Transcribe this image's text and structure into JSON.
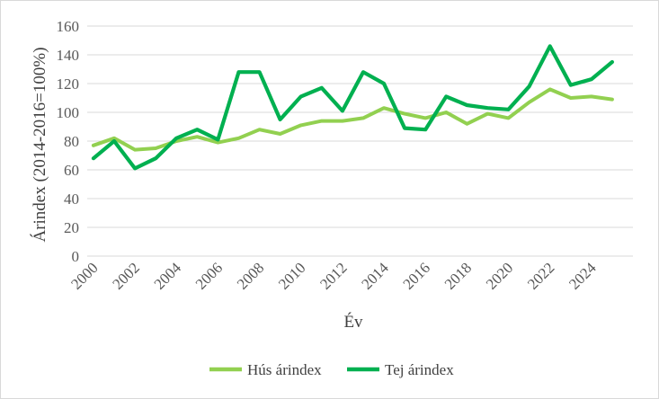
{
  "chart_data": {
    "type": "line",
    "title": "",
    "xlabel": "Év",
    "ylabel": "Árindex (2014-2016=100%)",
    "ylim": [
      0,
      160
    ],
    "yticks": [
      0,
      20,
      40,
      60,
      80,
      100,
      120,
      140,
      160
    ],
    "grid": "horizontal",
    "legend_position": "bottom",
    "x": [
      2000,
      2001,
      2002,
      2003,
      2004,
      2005,
      2006,
      2007,
      2008,
      2009,
      2010,
      2011,
      2012,
      2013,
      2014,
      2015,
      2016,
      2017,
      2018,
      2019,
      2020,
      2021,
      2022,
      2023,
      2024,
      2025
    ],
    "xtick_labels": [
      "2000",
      "2002",
      "2004",
      "2006",
      "2008",
      "2010",
      "2012",
      "2014",
      "2016",
      "2018",
      "2020",
      "2022",
      "2024"
    ],
    "series": [
      {
        "name": "Hús árindex",
        "color": "#92d050",
        "values": [
          77,
          82,
          74,
          75,
          80,
          83,
          79,
          82,
          88,
          85,
          91,
          94,
          94,
          96,
          103,
          99,
          96,
          100,
          92,
          99,
          96,
          107,
          116,
          110,
          111,
          109
        ]
      },
      {
        "name": "Tej árindex",
        "color": "#00b050",
        "values": [
          68,
          80,
          61,
          68,
          82,
          88,
          81,
          128,
          128,
          95,
          111,
          117,
          101,
          128,
          120,
          89,
          88,
          111,
          105,
          103,
          102,
          118,
          146,
          119,
          123,
          135
        ]
      }
    ]
  }
}
